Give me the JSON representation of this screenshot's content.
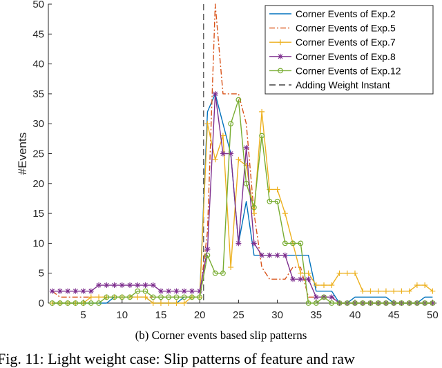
{
  "chart_data": {
    "type": "line",
    "ylabel": "#Events",
    "xlabel": "",
    "xlim": [
      0.5,
      50.5
    ],
    "ylim": [
      0,
      50
    ],
    "xticks": [
      5,
      10,
      15,
      20,
      25,
      30,
      35,
      40,
      45,
      50
    ],
    "yticks": [
      0,
      5,
      10,
      15,
      20,
      25,
      30,
      35,
      40,
      45,
      50
    ],
    "grid": false,
    "legend_position": "top-right",
    "vline": {
      "name": "Adding Weight Instant",
      "x": 20.5,
      "color": "#404040"
    },
    "series": [
      {
        "name": "Corner Events of Exp.2",
        "color": "#0072BD",
        "marker": "none",
        "x": [
          1,
          2,
          3,
          4,
          5,
          6,
          7,
          8,
          9,
          10,
          11,
          12,
          13,
          14,
          15,
          16,
          17,
          18,
          19,
          20,
          21,
          22,
          23,
          24,
          25,
          26,
          27,
          28,
          29,
          30,
          31,
          32,
          33,
          34,
          35,
          36,
          37,
          38,
          39,
          40,
          41,
          42,
          43,
          44,
          45,
          46,
          47,
          48,
          49,
          50
        ],
        "y": [
          0,
          0,
          0,
          0,
          0,
          0,
          0,
          0,
          1,
          1,
          1,
          1,
          1,
          0,
          0,
          0,
          0,
          1,
          1,
          1,
          32,
          35,
          30,
          25,
          10,
          17,
          8,
          8,
          8,
          8,
          8,
          8,
          8,
          8,
          2,
          2,
          2,
          0,
          0,
          1,
          1,
          1,
          1,
          1,
          0,
          0,
          0,
          0,
          1,
          1
        ]
      },
      {
        "name": "Corner Events of Exp.5",
        "color": "#D95319",
        "marker": "none",
        "dash": "8,3,2,3",
        "x": [
          1,
          2,
          3,
          4,
          5,
          6,
          7,
          8,
          9,
          10,
          11,
          12,
          13,
          14,
          15,
          16,
          17,
          18,
          19,
          20,
          21,
          22,
          23,
          24,
          25,
          26,
          27,
          28,
          29,
          30,
          31,
          32,
          33,
          34,
          35,
          36,
          37,
          38,
          39,
          40,
          41,
          42,
          43,
          44,
          45,
          46,
          47,
          48,
          49,
          50
        ],
        "y": [
          2,
          1,
          1,
          1,
          1,
          1,
          1,
          1,
          1,
          1,
          1,
          1,
          1,
          1,
          1,
          1,
          1,
          1,
          1,
          1,
          12,
          50,
          35,
          35,
          35,
          30,
          15,
          6,
          4,
          4,
          4,
          6,
          6,
          1,
          1,
          1,
          1,
          0,
          0,
          0,
          0,
          0,
          0,
          0,
          0,
          0,
          0,
          0,
          0,
          0
        ]
      },
      {
        "name": "Corner Events of Exp.7",
        "color": "#EDB120",
        "marker": "plus",
        "x": [
          1,
          2,
          3,
          4,
          5,
          6,
          7,
          8,
          9,
          10,
          11,
          12,
          13,
          14,
          15,
          16,
          17,
          18,
          19,
          20,
          21,
          22,
          23,
          24,
          25,
          26,
          27,
          28,
          29,
          30,
          31,
          32,
          33,
          34,
          35,
          36,
          37,
          38,
          39,
          40,
          41,
          42,
          43,
          44,
          45,
          46,
          47,
          48,
          49,
          50
        ],
        "y": [
          0,
          0,
          0,
          0,
          0,
          1,
          1,
          1,
          1,
          1,
          1,
          1,
          1,
          0,
          0,
          0,
          0,
          0,
          1,
          1,
          30,
          24,
          28,
          6,
          24,
          23,
          15,
          32,
          19,
          19,
          15,
          10,
          5,
          5,
          3,
          3,
          3,
          5,
          5,
          5,
          2,
          2,
          2,
          2,
          2,
          2,
          2,
          3,
          3,
          2
        ]
      },
      {
        "name": "Corner Events of Exp.8",
        "color": "#7E2F8E",
        "marker": "star",
        "x": [
          1,
          2,
          3,
          4,
          5,
          6,
          7,
          8,
          9,
          10,
          11,
          12,
          13,
          14,
          15,
          16,
          17,
          18,
          19,
          20,
          21,
          22,
          23,
          24,
          25,
          26,
          27,
          28,
          29,
          30,
          31,
          32,
          33,
          34,
          35,
          36,
          37,
          38,
          39,
          40,
          41,
          42,
          43,
          44,
          45,
          46,
          47,
          48,
          49,
          50
        ],
        "y": [
          2,
          2,
          2,
          2,
          2,
          2,
          3,
          3,
          3,
          3,
          3,
          3,
          3,
          3,
          2,
          2,
          2,
          2,
          2,
          2,
          9,
          35,
          25,
          25,
          10,
          26,
          10,
          8,
          8,
          8,
          8,
          4,
          4,
          4,
          1,
          1,
          1,
          0,
          0,
          0,
          0,
          0,
          0,
          0,
          0,
          0,
          0,
          0,
          0,
          0
        ]
      },
      {
        "name": "Corner Events of Exp.12",
        "color": "#77AC30",
        "marker": "circle",
        "x": [
          1,
          2,
          3,
          4,
          5,
          6,
          7,
          8,
          9,
          10,
          11,
          12,
          13,
          14,
          15,
          16,
          17,
          18,
          19,
          20,
          21,
          22,
          23,
          24,
          25,
          26,
          27,
          28,
          29,
          30,
          31,
          32,
          33,
          34,
          35,
          36,
          37,
          38,
          39,
          40,
          41,
          42,
          43,
          44,
          45,
          46,
          47,
          48,
          49,
          50
        ],
        "y": [
          0,
          0,
          0,
          0,
          0,
          0,
          0,
          1,
          1,
          1,
          1,
          2,
          2,
          1,
          1,
          1,
          1,
          1,
          1,
          1,
          8,
          5,
          5,
          30,
          34,
          20,
          16,
          28,
          17,
          17,
          10,
          10,
          10,
          0,
          0,
          1,
          0,
          0,
          0,
          0,
          0,
          0,
          0,
          0,
          0,
          0,
          0,
          0,
          0,
          0
        ]
      }
    ]
  },
  "caption": "(b) Corner events based slip patterns",
  "figure_line": "Fig. 11: Light weight case: Slip patterns of feature and raw"
}
